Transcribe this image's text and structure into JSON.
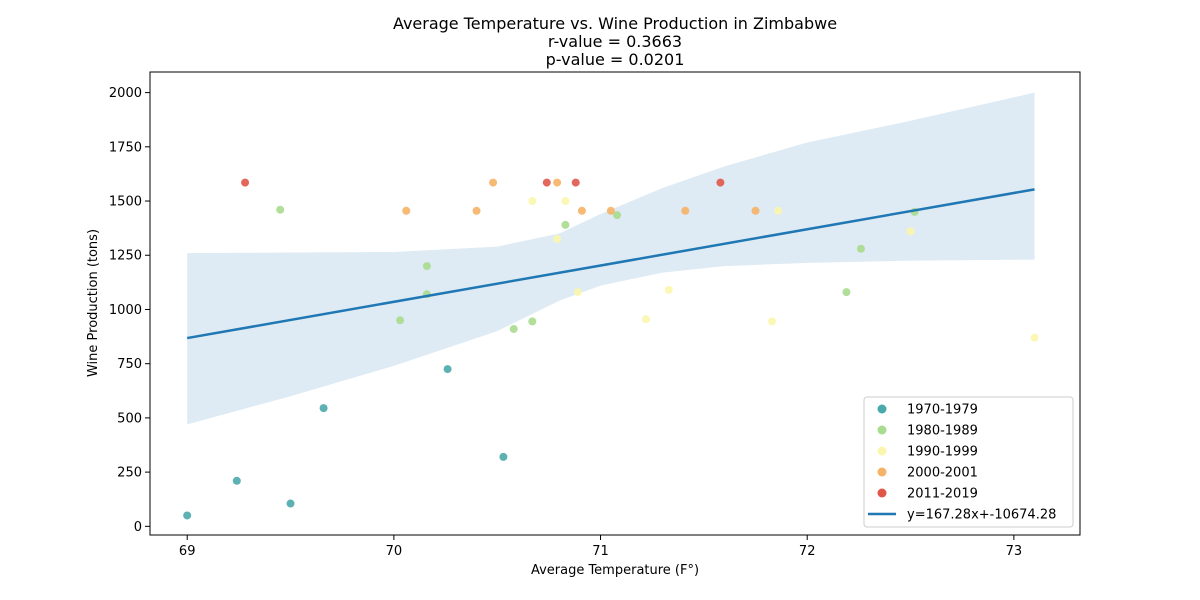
{
  "chart_data": {
    "type": "scatter",
    "title_lines": [
      "Average Temperature vs. Wine Production in Zimbabwe",
      "r-value = 0.3663",
      "p-value = 0.0201"
    ],
    "xlabel": "Average Temperature (F°)",
    "ylabel": "Wine Production (tons)",
    "xlim": [
      68.82,
      73.32
    ],
    "ylim": [
      -40,
      2095
    ],
    "xticks": [
      69,
      70,
      71,
      72,
      73
    ],
    "yticks": [
      0,
      250,
      500,
      750,
      1000,
      1250,
      1500,
      1750,
      2000
    ],
    "grid": false,
    "legend_position": "lower-right",
    "series": [
      {
        "name": "1970-1979",
        "color": "#4aa9ab",
        "x": [
          69.0,
          69.24,
          69.5,
          69.66,
          70.26,
          70.53
        ],
        "y": [
          50,
          210,
          105,
          545,
          725,
          320
        ]
      },
      {
        "name": "1980-1989",
        "color": "#a8dc8e",
        "x": [
          69.45,
          70.03,
          70.16,
          70.16,
          70.58,
          70.67,
          70.83,
          71.08,
          72.19,
          72.26,
          72.52
        ],
        "y": [
          1460,
          950,
          1200,
          1070,
          910,
          945,
          1390,
          1435,
          1080,
          1280,
          1450
        ]
      },
      {
        "name": "1990-1999",
        "color": "#fbf6ad",
        "x": [
          70.67,
          70.79,
          70.83,
          70.89,
          71.22,
          71.33,
          71.83,
          71.86,
          72.5,
          73.1
        ],
        "y": [
          1500,
          1325,
          1500,
          1080,
          955,
          1090,
          945,
          1455,
          1360,
          870
        ]
      },
      {
        "name": "2000-2001",
        "color": "#f6b266",
        "x": [
          70.06,
          70.4,
          70.48,
          70.79,
          70.91,
          71.05,
          71.41,
          71.75
        ],
        "y": [
          1455,
          1455,
          1585,
          1585,
          1455,
          1455,
          1455,
          1455
        ]
      },
      {
        "name": "2011-2019",
        "color": "#e0574a",
        "x": [
          69.28,
          70.74,
          70.88,
          71.58
        ],
        "y": [
          1585,
          1585,
          1585,
          1585
        ]
      }
    ],
    "regression": {
      "label": "y=167.28x+-10674.28",
      "slope": 167.28,
      "intercept": -10674.28,
      "x_range": [
        69.0,
        73.1
      ],
      "color": "#1f77b4",
      "band_color": "#1f77b4",
      "band_lower": [
        [
          69.0,
          470
        ],
        [
          69.5,
          600
        ],
        [
          70.0,
          740
        ],
        [
          70.5,
          900
        ],
        [
          70.8,
          1040
        ],
        [
          71.0,
          1110
        ],
        [
          71.3,
          1170
        ],
        [
          71.6,
          1200
        ],
        [
          72.0,
          1215
        ],
        [
          72.5,
          1225
        ],
        [
          73.1,
          1230
        ]
      ],
      "band_upper": [
        [
          69.0,
          1260
        ],
        [
          70.0,
          1265
        ],
        [
          70.5,
          1290
        ],
        [
          70.8,
          1350
        ],
        [
          71.0,
          1440
        ],
        [
          71.3,
          1560
        ],
        [
          71.6,
          1660
        ],
        [
          72.0,
          1770
        ],
        [
          72.5,
          1870
        ],
        [
          73.1,
          2000
        ]
      ]
    }
  }
}
